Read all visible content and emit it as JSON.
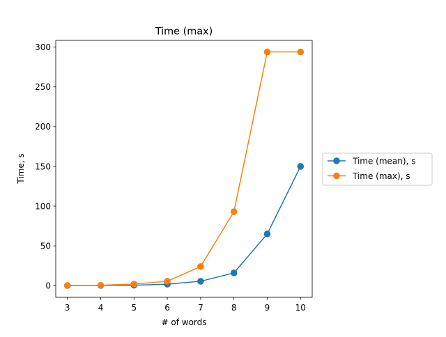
{
  "chart_data": {
    "type": "line",
    "title": "Time (max)",
    "xlabel": "# of words",
    "ylabel": "Time, s",
    "x": [
      3,
      4,
      5,
      6,
      7,
      8,
      9,
      10
    ],
    "xticks": [
      3,
      4,
      5,
      6,
      7,
      8,
      9,
      10
    ],
    "yticks": [
      0,
      50,
      100,
      150,
      200,
      250,
      300
    ],
    "xlim": [
      2.65,
      10.35
    ],
    "ylim": [
      -14.7,
      308.5
    ],
    "grid": false,
    "legend_position": "outside-right",
    "series": [
      {
        "name": "Time (mean), s",
        "color": "#1f77b4",
        "marker": "circle",
        "values": [
          0.1,
          0.2,
          0.5,
          1.8,
          5.5,
          16,
          65,
          150
        ]
      },
      {
        "name": "Time (max), s",
        "color": "#ff7f0e",
        "marker": "circle",
        "values": [
          0.2,
          0.4,
          2,
          5.5,
          24,
          93,
          294,
          294
        ]
      }
    ]
  }
}
